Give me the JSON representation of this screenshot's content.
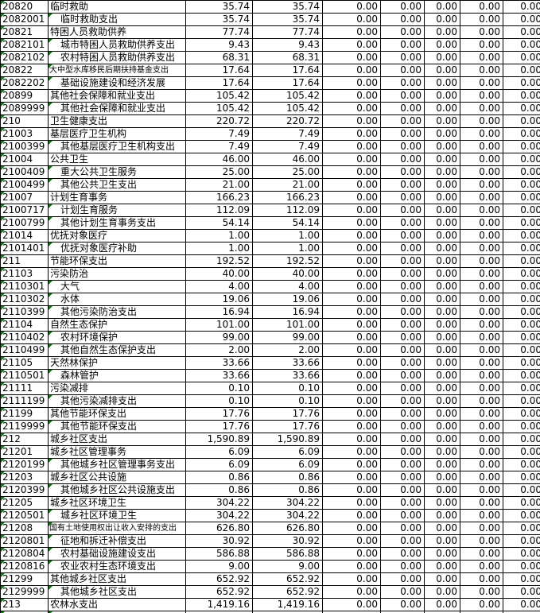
{
  "sheet": {
    "flag_color": "#008000",
    "grid_color": "#000000",
    "column_semantics": [
      "code",
      "item-name",
      "amount",
      "amount",
      "zero-1",
      "zero-2",
      "zero-3",
      "zero-4",
      "zero-5"
    ],
    "zero_columns": [
      "0.00",
      "0.00",
      "0.00",
      "0.00",
      "0.00"
    ],
    "rows": [
      {
        "code": "20820",
        "name": "临时救助",
        "indent": false,
        "name_flag": false,
        "shrink": false,
        "amount1": "35.74",
        "amount2": "35.74"
      },
      {
        "code": "2082001",
        "name": "临时救助支出",
        "indent": true,
        "name_flag": true,
        "shrink": false,
        "amount1": "35.74",
        "amount2": "35.74"
      },
      {
        "code": "20821",
        "name": "特困人员救助供养",
        "indent": false,
        "name_flag": false,
        "shrink": false,
        "amount1": "77.74",
        "amount2": "77.74"
      },
      {
        "code": "2082101",
        "name": "城市特困人员救助供养支出",
        "indent": true,
        "name_flag": true,
        "shrink": false,
        "amount1": "9.43",
        "amount2": "9.43"
      },
      {
        "code": "2082102",
        "name": "农村特困人员救助供养支出",
        "indent": true,
        "name_flag": true,
        "shrink": false,
        "amount1": "68.31",
        "amount2": "68.31"
      },
      {
        "code": "20822",
        "name": "大中型水库移民后期扶持基金支出",
        "indent": false,
        "name_flag": true,
        "shrink": true,
        "amount1": "17.64",
        "amount2": "17.64"
      },
      {
        "code": "2082202",
        "name": "基础设施建设和经济发展",
        "indent": true,
        "name_flag": true,
        "shrink": false,
        "amount1": "17.64",
        "amount2": "17.64"
      },
      {
        "code": "20899",
        "name": "其他社会保障和就业支出",
        "indent": false,
        "name_flag": false,
        "shrink": false,
        "amount1": "105.42",
        "amount2": "105.42"
      },
      {
        "code": "2089999",
        "name": "其他社会保障和就业支出",
        "indent": true,
        "name_flag": true,
        "shrink": false,
        "amount1": "105.42",
        "amount2": "105.42"
      },
      {
        "code": "210",
        "name": "卫生健康支出",
        "indent": false,
        "name_flag": false,
        "shrink": false,
        "amount1": "220.72",
        "amount2": "220.72"
      },
      {
        "code": "21003",
        "name": "基层医疗卫生机构",
        "indent": false,
        "name_flag": false,
        "shrink": false,
        "amount1": "7.49",
        "amount2": "7.49"
      },
      {
        "code": "2100399",
        "name": "其他基层医疗卫生机构支出",
        "indent": true,
        "name_flag": true,
        "shrink": false,
        "amount1": "7.49",
        "amount2": "7.49"
      },
      {
        "code": "21004",
        "name": "公共卫生",
        "indent": false,
        "name_flag": false,
        "shrink": false,
        "amount1": "46.00",
        "amount2": "46.00"
      },
      {
        "code": "2100409",
        "name": "重大公共卫生服务",
        "indent": true,
        "name_flag": true,
        "shrink": false,
        "amount1": "25.00",
        "amount2": "25.00"
      },
      {
        "code": "2100499",
        "name": "其他公共卫生支出",
        "indent": true,
        "name_flag": true,
        "shrink": false,
        "amount1": "21.00",
        "amount2": "21.00"
      },
      {
        "code": "21007",
        "name": "计划生育事务",
        "indent": false,
        "name_flag": false,
        "shrink": false,
        "amount1": "166.23",
        "amount2": "166.23"
      },
      {
        "code": "2100717",
        "name": "计划生育服务",
        "indent": true,
        "name_flag": true,
        "shrink": false,
        "amount1": "112.09",
        "amount2": "112.09"
      },
      {
        "code": "2100799",
        "name": "其他计划生育事务支出",
        "indent": true,
        "name_flag": true,
        "shrink": false,
        "amount1": "54.14",
        "amount2": "54.14"
      },
      {
        "code": "21014",
        "name": "优抚对象医疗",
        "indent": false,
        "name_flag": false,
        "shrink": false,
        "amount1": "1.00",
        "amount2": "1.00"
      },
      {
        "code": "2101401",
        "name": "优抚对象医疗补助",
        "indent": true,
        "name_flag": true,
        "shrink": false,
        "amount1": "1.00",
        "amount2": "1.00"
      },
      {
        "code": "211",
        "name": "节能环保支出",
        "indent": false,
        "name_flag": false,
        "shrink": false,
        "amount1": "192.52",
        "amount2": "192.52"
      },
      {
        "code": "21103",
        "name": "污染防治",
        "indent": false,
        "name_flag": false,
        "shrink": false,
        "amount1": "40.00",
        "amount2": "40.00"
      },
      {
        "code": "2110301",
        "name": "大气",
        "indent": true,
        "name_flag": true,
        "shrink": false,
        "amount1": "4.00",
        "amount2": "4.00"
      },
      {
        "code": "2110302",
        "name": "水体",
        "indent": true,
        "name_flag": true,
        "shrink": false,
        "amount1": "19.06",
        "amount2": "19.06"
      },
      {
        "code": "2110399",
        "name": "其他污染防治支出",
        "indent": true,
        "name_flag": true,
        "shrink": false,
        "amount1": "16.94",
        "amount2": "16.94"
      },
      {
        "code": "21104",
        "name": "自然生态保护",
        "indent": false,
        "name_flag": false,
        "shrink": false,
        "amount1": "101.00",
        "amount2": "101.00"
      },
      {
        "code": "2110402",
        "name": "农村环境保护",
        "indent": true,
        "name_flag": true,
        "shrink": false,
        "amount1": "99.00",
        "amount2": "99.00"
      },
      {
        "code": "2110499",
        "name": "其他自然生态保护支出",
        "indent": true,
        "name_flag": true,
        "shrink": false,
        "amount1": "2.00",
        "amount2": "2.00"
      },
      {
        "code": "21105",
        "name": "天然林保护",
        "indent": false,
        "name_flag": false,
        "shrink": false,
        "amount1": "33.66",
        "amount2": "33.66"
      },
      {
        "code": "2110501",
        "name": "森林管护",
        "indent": true,
        "name_flag": true,
        "shrink": false,
        "amount1": "33.66",
        "amount2": "33.66"
      },
      {
        "code": "21111",
        "name": "污染减排",
        "indent": false,
        "name_flag": false,
        "shrink": false,
        "amount1": "0.10",
        "amount2": "0.10"
      },
      {
        "code": "2111199",
        "name": "其他污染减排支出",
        "indent": true,
        "name_flag": true,
        "shrink": false,
        "amount1": "0.10",
        "amount2": "0.10"
      },
      {
        "code": "21199",
        "name": "其他节能环保支出",
        "indent": false,
        "name_flag": false,
        "shrink": false,
        "amount1": "17.76",
        "amount2": "17.76"
      },
      {
        "code": "2119999",
        "name": "其他节能环保支出",
        "indent": true,
        "name_flag": true,
        "shrink": false,
        "amount1": "17.76",
        "amount2": "17.76"
      },
      {
        "code": "212",
        "name": "城乡社区支出",
        "indent": false,
        "name_flag": false,
        "shrink": false,
        "amount1": "1,590.89",
        "amount2": "1,590.89"
      },
      {
        "code": "21201",
        "name": "城乡社区管理事务",
        "indent": false,
        "name_flag": false,
        "shrink": false,
        "amount1": "6.09",
        "amount2": "6.09"
      },
      {
        "code": "2120199",
        "name": "其他城乡社区管理事务支出",
        "indent": true,
        "name_flag": true,
        "shrink": false,
        "amount1": "6.09",
        "amount2": "6.09"
      },
      {
        "code": "21203",
        "name": "城乡社区公共设施",
        "indent": false,
        "name_flag": false,
        "shrink": false,
        "amount1": "0.86",
        "amount2": "0.86"
      },
      {
        "code": "2120399",
        "name": "其他城乡社区公共设施支出",
        "indent": true,
        "name_flag": true,
        "shrink": false,
        "amount1": "0.86",
        "amount2": "0.86"
      },
      {
        "code": "21205",
        "name": "城乡社区环境卫生",
        "indent": false,
        "name_flag": false,
        "shrink": false,
        "amount1": "304.22",
        "amount2": "304.22"
      },
      {
        "code": "2120501",
        "name": "城乡社区环境卫生",
        "indent": true,
        "name_flag": true,
        "shrink": false,
        "amount1": "304.22",
        "amount2": "304.22"
      },
      {
        "code": "21208",
        "name": "国有土地使用权出让收入安排的支出",
        "indent": false,
        "name_flag": true,
        "shrink": true,
        "amount1": "626.80",
        "amount2": "626.80"
      },
      {
        "code": "2120801",
        "name": "征地和拆迁补偿支出",
        "indent": true,
        "name_flag": true,
        "shrink": false,
        "amount1": "30.92",
        "amount2": "30.92"
      },
      {
        "code": "2120804",
        "name": "农村基础设施建设支出",
        "indent": true,
        "name_flag": true,
        "shrink": false,
        "amount1": "586.88",
        "amount2": "586.88"
      },
      {
        "code": "2120816",
        "name": "农业农村生态环境支出",
        "indent": true,
        "name_flag": true,
        "shrink": false,
        "amount1": "9.00",
        "amount2": "9.00"
      },
      {
        "code": "21299",
        "name": "其他城乡社区支出",
        "indent": false,
        "name_flag": false,
        "shrink": false,
        "amount1": "652.92",
        "amount2": "652.92"
      },
      {
        "code": "2129999",
        "name": "其他城乡社区支出",
        "indent": true,
        "name_flag": true,
        "shrink": false,
        "amount1": "652.92",
        "amount2": "652.92"
      },
      {
        "code": "213",
        "name": "农林水支出",
        "indent": false,
        "name_flag": false,
        "shrink": false,
        "amount1": "1,419.16",
        "amount2": "1,419.16"
      }
    ],
    "partial_bottom_row": {
      "code_flag": true,
      "name_flag": true
    }
  }
}
